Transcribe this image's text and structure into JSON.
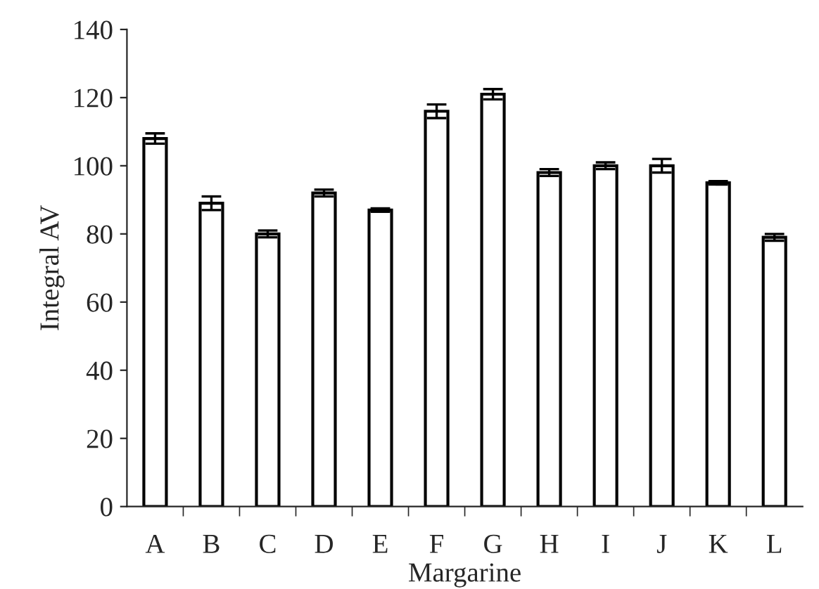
{
  "chart_data": {
    "type": "bar",
    "xlabel": "Margarine",
    "ylabel": "Integral AV",
    "categories": [
      "A",
      "B",
      "C",
      "D",
      "E",
      "F",
      "G",
      "H",
      "I",
      "J",
      "K",
      "L"
    ],
    "values": [
      108,
      89,
      80,
      92,
      87,
      116,
      121,
      98,
      100,
      100,
      95,
      79
    ],
    "errors": [
      1.5,
      2,
      1,
      1,
      0.5,
      2,
      1.5,
      1,
      1,
      2,
      0.5,
      1
    ],
    "color": "#ffffff",
    "ylim": [
      0,
      140
    ],
    "yticks": [
      0,
      20,
      40,
      60,
      80,
      100,
      120,
      140
    ],
    "grid": false
  }
}
